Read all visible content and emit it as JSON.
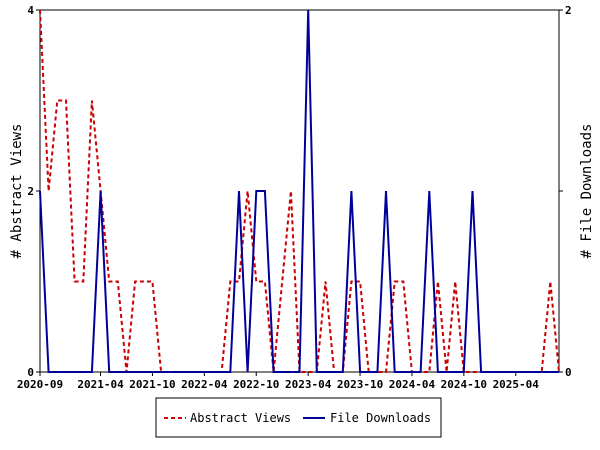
{
  "chart_data": {
    "type": "line",
    "x_ticks": [
      "2020-09",
      "2021-04",
      "2021-10",
      "2022-04",
      "2022-10",
      "2023-04",
      "2023-10",
      "2024-04",
      "2024-10",
      "2025-04"
    ],
    "x_range": [
      "2020-09",
      "2025-09"
    ],
    "y_left": {
      "label": "# Abstract Views",
      "range": [
        0,
        4
      ],
      "ticks": [
        "0",
        "2",
        "4"
      ]
    },
    "y_right": {
      "label": "# File Downloads",
      "range": [
        0,
        2
      ],
      "ticks": [
        "0",
        "1",
        "2"
      ]
    },
    "grid": false,
    "legend_position": "bottom",
    "series": [
      {
        "name": "Abstract Views",
        "axis": "left",
        "color": "#cc0000",
        "style": "dashed",
        "x": [
          "2020-09",
          "2020-10",
          "2020-11",
          "2020-12",
          "2021-01",
          "2021-02",
          "2021-03",
          "2021-04",
          "2021-05",
          "2021-06",
          "2021-07",
          "2021-08",
          "2021-09",
          "2021-10",
          "2021-11",
          "2021-12",
          "2022-01",
          "2022-02",
          "2022-03",
          "2022-04",
          "2022-05",
          "2022-06",
          "2022-07",
          "2022-08",
          "2022-09",
          "2022-10",
          "2022-11",
          "2022-12",
          "2023-01",
          "2023-02",
          "2023-03",
          "2023-04",
          "2023-05",
          "2023-06",
          "2023-07",
          "2023-08",
          "2023-09",
          "2023-10",
          "2023-11",
          "2023-12",
          "2024-01",
          "2024-02",
          "2024-03",
          "2024-04",
          "2024-05",
          "2024-06",
          "2024-07",
          "2024-08",
          "2024-09",
          "2024-10",
          "2024-11",
          "2024-12",
          "2025-01",
          "2025-02",
          "2025-03",
          "2025-04",
          "2025-05",
          "2025-06",
          "2025-07",
          "2025-08",
          "2025-09"
        ],
        "values": [
          4,
          2,
          3,
          3,
          1,
          1,
          3,
          2,
          1,
          1,
          0,
          1,
          1,
          1,
          0,
          0,
          0,
          0,
          0,
          0,
          0,
          0,
          1,
          1,
          2,
          1,
          1,
          0,
          1,
          2,
          0,
          0,
          0,
          1,
          0,
          0,
          1,
          1,
          0,
          0,
          0,
          1,
          1,
          0,
          0,
          0,
          1,
          0,
          1,
          0,
          0,
          0,
          0,
          0,
          0,
          0,
          0,
          0,
          0,
          1,
          0
        ]
      },
      {
        "name": "File Downloads",
        "axis": "right",
        "color": "#000099",
        "style": "solid",
        "x": [
          "2020-09",
          "2020-10",
          "2020-11",
          "2020-12",
          "2021-01",
          "2021-02",
          "2021-03",
          "2021-04",
          "2021-05",
          "2021-06",
          "2021-07",
          "2021-08",
          "2021-09",
          "2021-10",
          "2021-11",
          "2021-12",
          "2022-01",
          "2022-02",
          "2022-03",
          "2022-04",
          "2022-05",
          "2022-06",
          "2022-07",
          "2022-08",
          "2022-09",
          "2022-10",
          "2022-11",
          "2022-12",
          "2023-01",
          "2023-02",
          "2023-03",
          "2023-04",
          "2023-05",
          "2023-06",
          "2023-07",
          "2023-08",
          "2023-09",
          "2023-10",
          "2023-11",
          "2023-12",
          "2024-01",
          "2024-02",
          "2024-03",
          "2024-04",
          "2024-05",
          "2024-06",
          "2024-07",
          "2024-08",
          "2024-09",
          "2024-10",
          "2024-11",
          "2024-12",
          "2025-01",
          "2025-02",
          "2025-03",
          "2025-04",
          "2025-05",
          "2025-06",
          "2025-07",
          "2025-08",
          "2025-09"
        ],
        "values": [
          1,
          0,
          0,
          0,
          0,
          0,
          0,
          1,
          0,
          0,
          0,
          0,
          0,
          0,
          0,
          0,
          0,
          0,
          0,
          0,
          0,
          0,
          0,
          1,
          0,
          1,
          1,
          0,
          0,
          0,
          0,
          2,
          0,
          0,
          0,
          0,
          1,
          0,
          0,
          0,
          1,
          0,
          0,
          0,
          0,
          1,
          0,
          0,
          0,
          0,
          1,
          0,
          0,
          0,
          0,
          0,
          0,
          0,
          0,
          0,
          0
        ]
      }
    ]
  }
}
